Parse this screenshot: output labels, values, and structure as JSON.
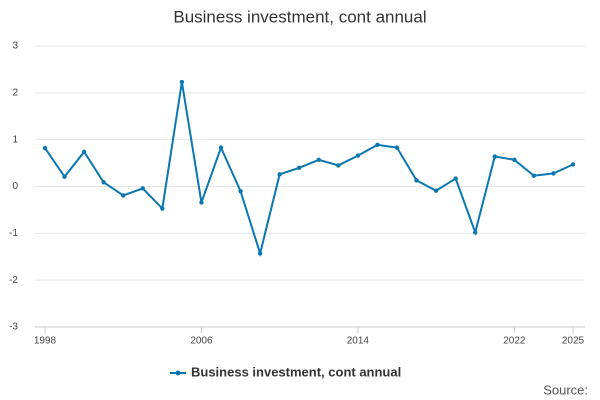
{
  "chart_data": {
    "type": "line",
    "title": "Business investment, cont annual",
    "x": [
      1998,
      1999,
      2000,
      2001,
      2002,
      2003,
      2004,
      2005,
      2006,
      2007,
      2008,
      2009,
      2010,
      2011,
      2012,
      2013,
      2014,
      2015,
      2016,
      2017,
      2018,
      2019,
      2020,
      2021,
      2022,
      2023,
      2024,
      2025
    ],
    "series": [
      {
        "name": "Business investment, cont annual",
        "color": "#0a77b0",
        "values": [
          0.82,
          0.21,
          0.74,
          0.09,
          -0.19,
          -0.04,
          -0.47,
          2.23,
          -0.34,
          0.83,
          -0.1,
          -1.43,
          0.26,
          0.4,
          0.57,
          0.45,
          0.66,
          0.89,
          0.83,
          0.13,
          -0.09,
          0.17,
          -0.98,
          0.64,
          0.57,
          0.23,
          0.28,
          0.47
        ]
      }
    ],
    "xlim": [
      1998,
      2025
    ],
    "xticks": [
      1998,
      2006,
      2014,
      2022,
      2025
    ],
    "ylim": [
      -3,
      3
    ],
    "yticks": [
      -3,
      -2,
      -1,
      0,
      1,
      2,
      3
    ],
    "grid": true,
    "legend": "bottom",
    "source": "Source:"
  }
}
